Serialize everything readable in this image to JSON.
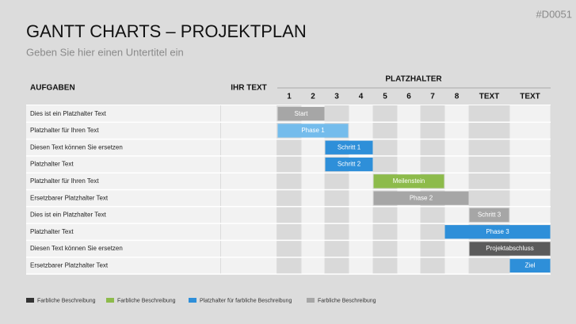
{
  "chart_data": {
    "type": "gantt",
    "title": "GANTT CHARTS – PROJEKTPLAN",
    "subtitle": "Geben Sie hier einen Untertitel ein",
    "code": "#D0051",
    "task_header": "AUFGABEN",
    "text_header": "IHR TEXT",
    "group_header": "PLATZHALTER",
    "columns": [
      "1",
      "2",
      "3",
      "4",
      "5",
      "6",
      "7",
      "8",
      "TEXT",
      "TEXT"
    ],
    "tasks": [
      {
        "name": "Dies ist ein Platzhalter Text",
        "label": "Start",
        "start": 0,
        "end": 2,
        "color": "#a6a6a6"
      },
      {
        "name": "Platzhalter für Ihren Text",
        "label": "Phase 1",
        "start": 0,
        "end": 3,
        "color": "#74bcec"
      },
      {
        "name": "Diesen Text können Sie ersetzen",
        "label": "Schritt 1",
        "start": 2,
        "end": 4,
        "color": "#2e8fd9"
      },
      {
        "name": "Platzhalter Text",
        "label": "Schritt 2",
        "start": 2,
        "end": 4,
        "color": "#2e8fd9"
      },
      {
        "name": "Platzhalter für Ihren Text",
        "label": "Meilenstein",
        "start": 4,
        "end": 7,
        "color": "#8dbb4b"
      },
      {
        "name": "Ersetzbarer Platzhalter Text",
        "label": "Phase 2",
        "start": 4,
        "end": 8,
        "color": "#a6a6a6"
      },
      {
        "name": "Dies ist ein Platzhalter Text",
        "label": "Schritt 3",
        "start": 8,
        "end": 9,
        "color": "#a6a6a6"
      },
      {
        "name": "Platzhalter Text",
        "label": "Phase 3",
        "start": 7,
        "end": 10,
        "color": "#2e8fd9"
      },
      {
        "name": "Diesen Text können Sie ersetzen",
        "label": "Projektabschluss",
        "start": 8,
        "end": 10,
        "color": "#5b5b5b"
      },
      {
        "name": "Ersetzbarer Platzhalter Text",
        "label": "Ziel",
        "start": 9,
        "end": 10,
        "color": "#2e8fd9"
      }
    ],
    "legend": [
      {
        "label": "Farbliche Beschreibung",
        "color": "#333333"
      },
      {
        "label": "Farbliche Beschreibung",
        "color": "#8dbb4b"
      },
      {
        "label": "Platzhalter für farbliche Beschreibung",
        "color": "#2e8fd9"
      },
      {
        "label": "Farbliche Beschreibung",
        "color": "#a6a6a6"
      }
    ]
  }
}
